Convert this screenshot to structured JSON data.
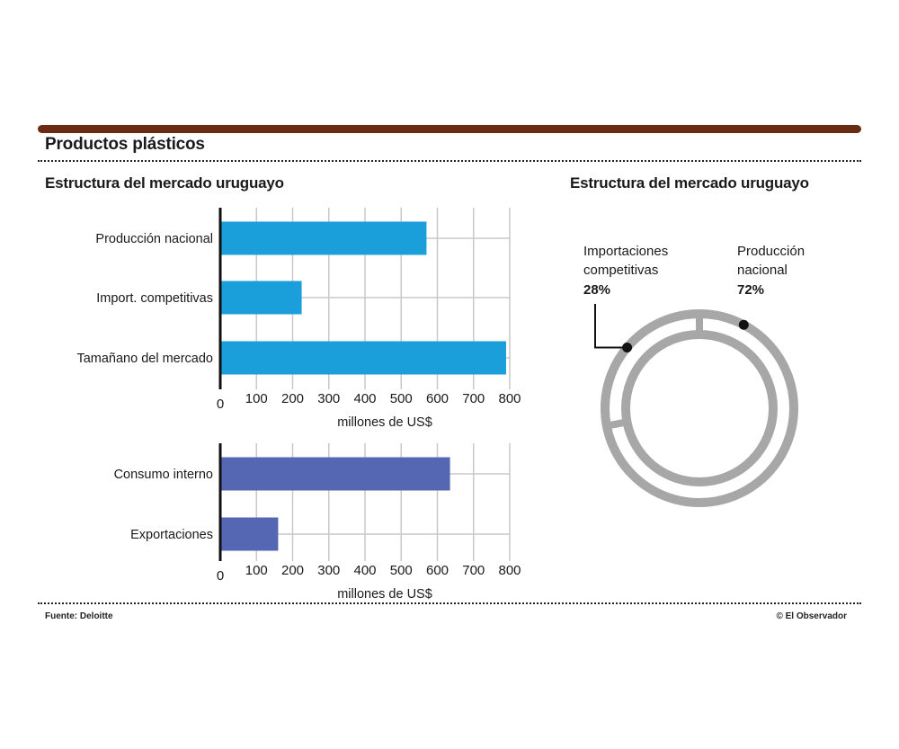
{
  "page_title": "Productos plásticos",
  "source": "Fuente: Deloitte",
  "credit": "© El Observador",
  "colors": {
    "rule": "#6b2b12",
    "bar_blue": "#1b9fdb",
    "bar_purple": "#5566b3",
    "ring": "#a7a7a7",
    "grid": "#c8c8c8"
  },
  "chart_data": [
    {
      "type": "bar",
      "orientation": "horizontal",
      "title": "Estructura del mercado uruguayo",
      "xlabel": "millones de US$",
      "categories": [
        "Producción nacional",
        "Import. competitivas",
        "Tamañano del mercado"
      ],
      "values": [
        570,
        225,
        790
      ],
      "xlim": [
        0,
        800
      ],
      "ticks": [
        0,
        100,
        200,
        300,
        400,
        500,
        600,
        700,
        800
      ],
      "grid": true,
      "color": "#1b9fdb"
    },
    {
      "type": "bar",
      "orientation": "horizontal",
      "xlabel": "millones de US$",
      "categories": [
        "Consumo interno",
        "Exportaciones"
      ],
      "values": [
        635,
        160
      ],
      "xlim": [
        0,
        800
      ],
      "ticks": [
        0,
        100,
        200,
        300,
        400,
        500,
        600,
        700,
        800
      ],
      "grid": true,
      "color": "#5566b3"
    },
    {
      "type": "pie",
      "style": "ring",
      "title": "Estructura del mercado uruguayo",
      "labels": [
        {
          "name": [
            "Importaciones",
            "competitivas"
          ],
          "pct_label": "28%",
          "value": 28
        },
        {
          "name": [
            "Producción",
            "nacional"
          ],
          "pct_label": "72%",
          "value": 72
        }
      ]
    }
  ]
}
